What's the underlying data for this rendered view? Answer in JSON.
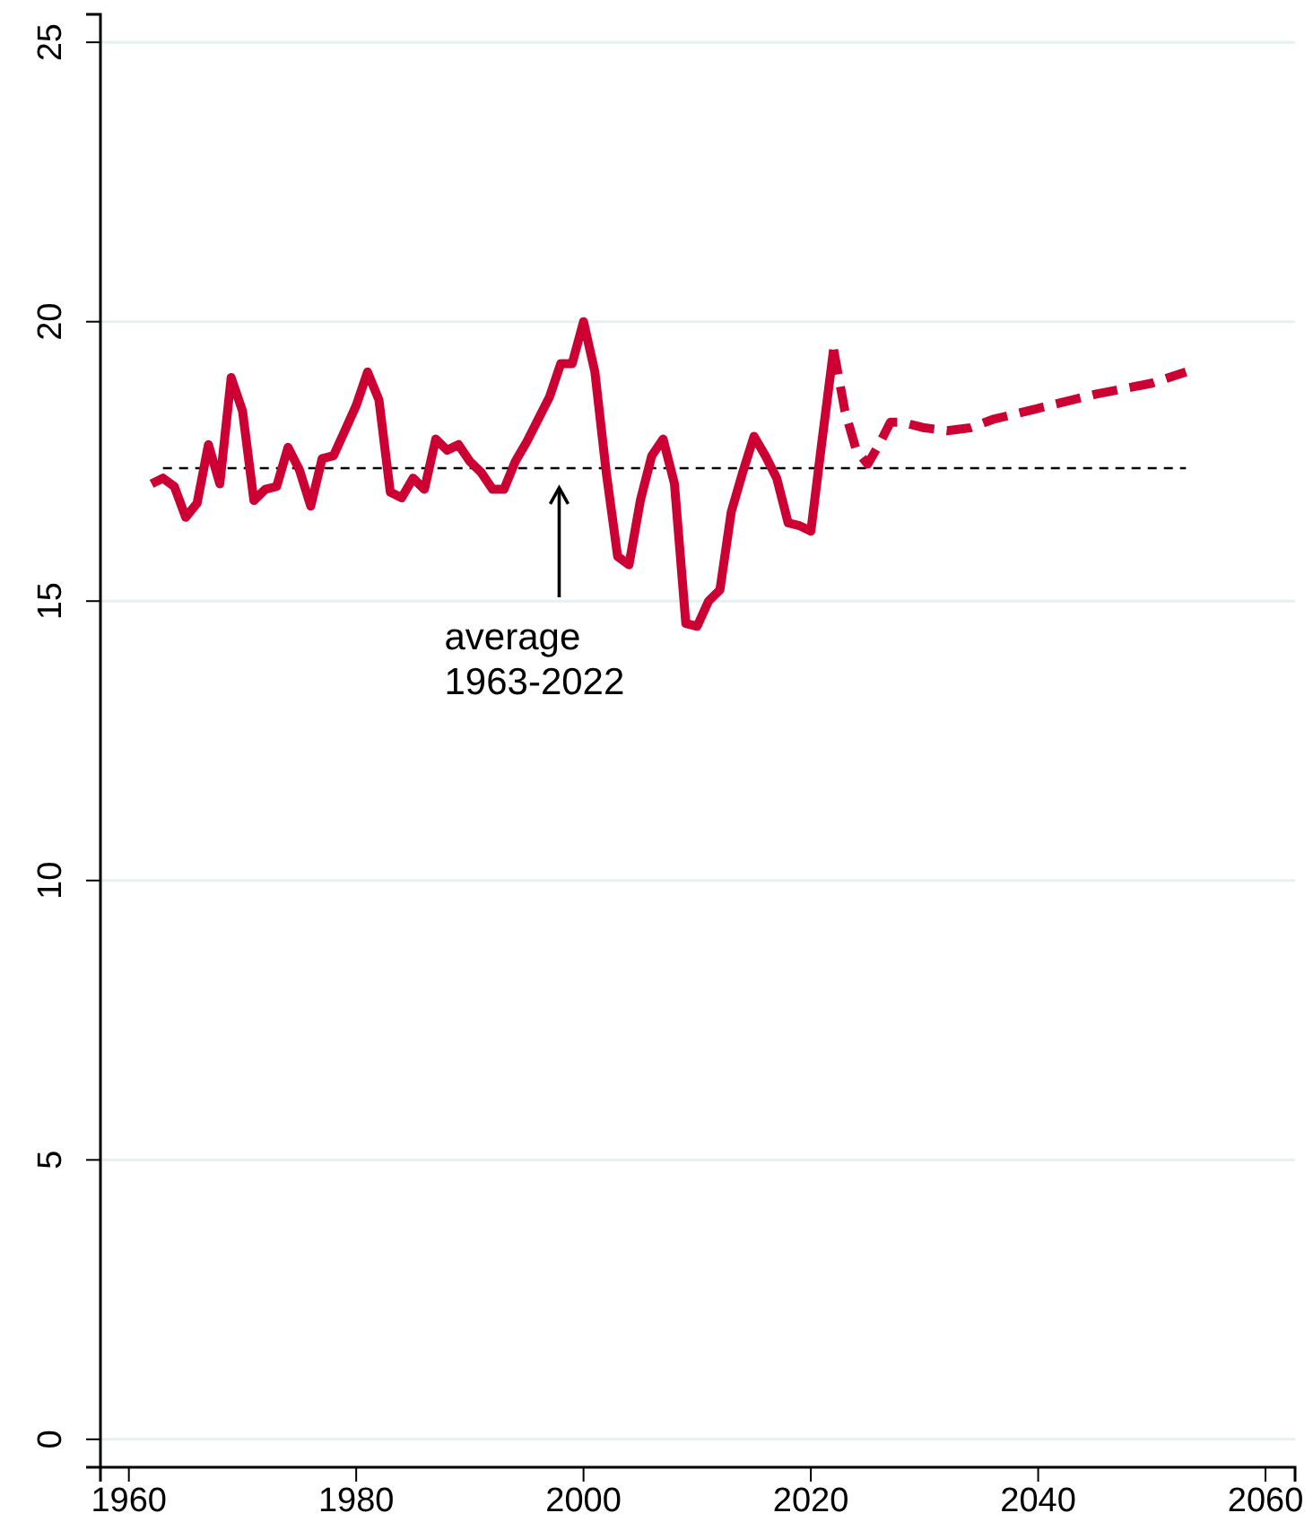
{
  "chart_data": {
    "type": "line",
    "xlim": [
      1957.5,
      2062.6
    ],
    "ylim": [
      -0.5,
      25.5
    ],
    "xticks": [
      1960,
      1980,
      2000,
      2020,
      2040,
      2060
    ],
    "yticks": [
      0,
      5,
      10,
      15,
      20,
      25
    ],
    "grid": "y",
    "series": [
      {
        "color": "#cc0033",
        "line_style": "solid",
        "x": [
          1962,
          1963,
          1964,
          1965,
          1966,
          1967,
          1968,
          1969,
          1970,
          1971,
          1972,
          1973,
          1974,
          1975,
          1976,
          1977,
          1978,
          1979,
          1980,
          1981,
          1982,
          1983,
          1984,
          1985,
          1986,
          1987,
          1988,
          1989,
          1990,
          1991,
          1992,
          1993,
          1994,
          1995,
          1996,
          1997,
          1998,
          1999,
          2000,
          2001,
          2002,
          2003,
          2004,
          2005,
          2006,
          2007,
          2008,
          2009,
          2010,
          2011,
          2012,
          2013,
          2014,
          2015,
          2016,
          2017,
          2018,
          2019,
          2020,
          2021,
          2022
        ],
        "values": [
          17.1,
          17.2,
          17.05,
          16.5,
          16.75,
          17.8,
          17.1,
          19.0,
          18.4,
          16.8,
          17.0,
          17.05,
          17.75,
          17.35,
          16.7,
          17.55,
          17.6,
          18.05,
          18.5,
          19.1,
          18.6,
          16.95,
          16.85,
          17.2,
          17.0,
          17.9,
          17.7,
          17.8,
          17.5,
          17.3,
          17.0,
          17.0,
          17.5,
          17.85,
          18.25,
          18.65,
          19.25,
          19.25,
          20.0,
          19.1,
          17.3,
          15.8,
          15.65,
          16.8,
          17.6,
          17.9,
          17.1,
          14.6,
          14.55,
          15.0,
          15.2,
          16.6,
          17.3,
          17.95,
          17.6,
          17.2,
          16.4,
          16.35,
          16.25,
          17.9,
          19.5
        ]
      },
      {
        "color": "#cc0033",
        "line_style": "dashed",
        "x": [
          2022,
          2023,
          2024,
          2025,
          2026,
          2027,
          2028,
          2030,
          2032,
          2034,
          2036,
          2040,
          2045,
          2050,
          2053
        ],
        "values": [
          19.5,
          18.4,
          17.7,
          17.45,
          17.8,
          18.2,
          18.2,
          18.1,
          18.05,
          18.1,
          18.25,
          18.45,
          18.7,
          18.9,
          19.1
        ]
      }
    ],
    "ref_lines": [
      {
        "axis": "y",
        "value": 17.38,
        "color": "#000000",
        "line_style": "dashed"
      }
    ],
    "annotations": [
      "average\n1963-2022"
    ]
  }
}
